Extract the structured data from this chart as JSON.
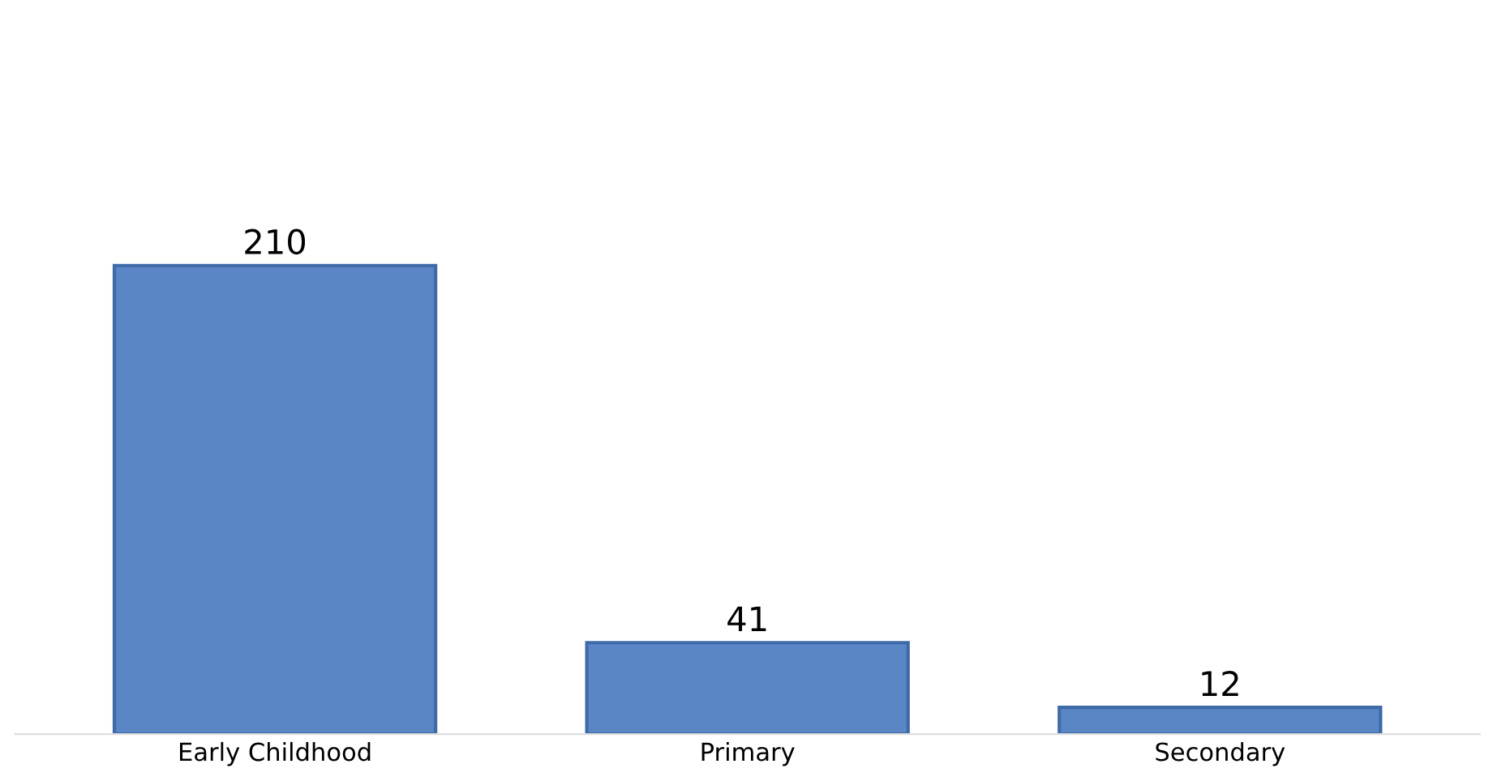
{
  "chart_data": {
    "type": "bar",
    "categories": [
      "Early Childhood",
      "Primary",
      "Secondary"
    ],
    "values": [
      210,
      41,
      12
    ],
    "color": "#5b86c6",
    "data_labels": true,
    "tick_labels": "x",
    "grid": false,
    "legend": false
  }
}
